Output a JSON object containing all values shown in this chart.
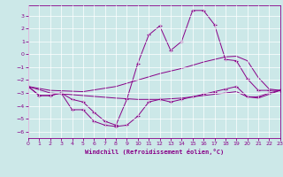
{
  "xlabel": "Windchill (Refroidissement éolien,°C)",
  "bg_color": "#cce8e8",
  "grid_color": "#ffffff",
  "line_color": "#880088",
  "xlim": [
    0,
    23
  ],
  "ylim": [
    -6.5,
    3.8
  ],
  "yticks": [
    -6,
    -5,
    -4,
    -3,
    -2,
    -1,
    0,
    1,
    2,
    3
  ],
  "xticks": [
    0,
    1,
    2,
    3,
    4,
    5,
    6,
    7,
    8,
    9,
    10,
    11,
    12,
    13,
    14,
    15,
    16,
    17,
    18,
    19,
    20,
    21,
    22,
    23
  ],
  "line_upper_x": [
    0,
    1,
    2,
    3,
    4,
    5,
    6,
    7,
    8,
    9,
    10,
    11,
    12,
    13,
    14,
    15,
    16,
    17,
    18,
    19,
    20,
    21,
    22,
    23
  ],
  "line_upper_y": [
    -2.5,
    -3.2,
    -3.2,
    -3.0,
    -3.5,
    -3.7,
    -4.5,
    -5.2,
    -5.5,
    -3.5,
    -0.7,
    1.5,
    2.2,
    0.3,
    1.0,
    3.4,
    3.4,
    2.3,
    -0.4,
    -0.5,
    -1.9,
    -2.8,
    -2.8,
    -2.8
  ],
  "line_lower_x": [
    0,
    1,
    2,
    3,
    4,
    5,
    6,
    7,
    8,
    9,
    10,
    11,
    12,
    13,
    14,
    15,
    16,
    17,
    18,
    19,
    20,
    21,
    22,
    23
  ],
  "line_lower_y": [
    -2.5,
    -3.2,
    -3.2,
    -3.0,
    -4.3,
    -4.3,
    -5.2,
    -5.5,
    -5.6,
    -5.5,
    -4.8,
    -3.7,
    -3.5,
    -3.7,
    -3.5,
    -3.3,
    -3.1,
    -2.9,
    -2.7,
    -2.5,
    -3.3,
    -3.3,
    -3.0,
    -2.8
  ],
  "smooth_upper_x": [
    0,
    2,
    5,
    8,
    10,
    12,
    14,
    16,
    18,
    19,
    20,
    21,
    22,
    23
  ],
  "smooth_upper_y": [
    -2.5,
    -2.8,
    -2.9,
    -2.5,
    -2.0,
    -1.5,
    -1.1,
    -0.6,
    -0.2,
    -0.15,
    -0.5,
    -1.8,
    -2.7,
    -2.8
  ],
  "smooth_lower_x": [
    0,
    2,
    5,
    8,
    10,
    12,
    14,
    16,
    18,
    19,
    20,
    21,
    22,
    23
  ],
  "smooth_lower_y": [
    -2.5,
    -3.0,
    -3.2,
    -3.4,
    -3.5,
    -3.5,
    -3.4,
    -3.2,
    -3.0,
    -2.9,
    -3.3,
    -3.4,
    -3.1,
    -2.8
  ]
}
